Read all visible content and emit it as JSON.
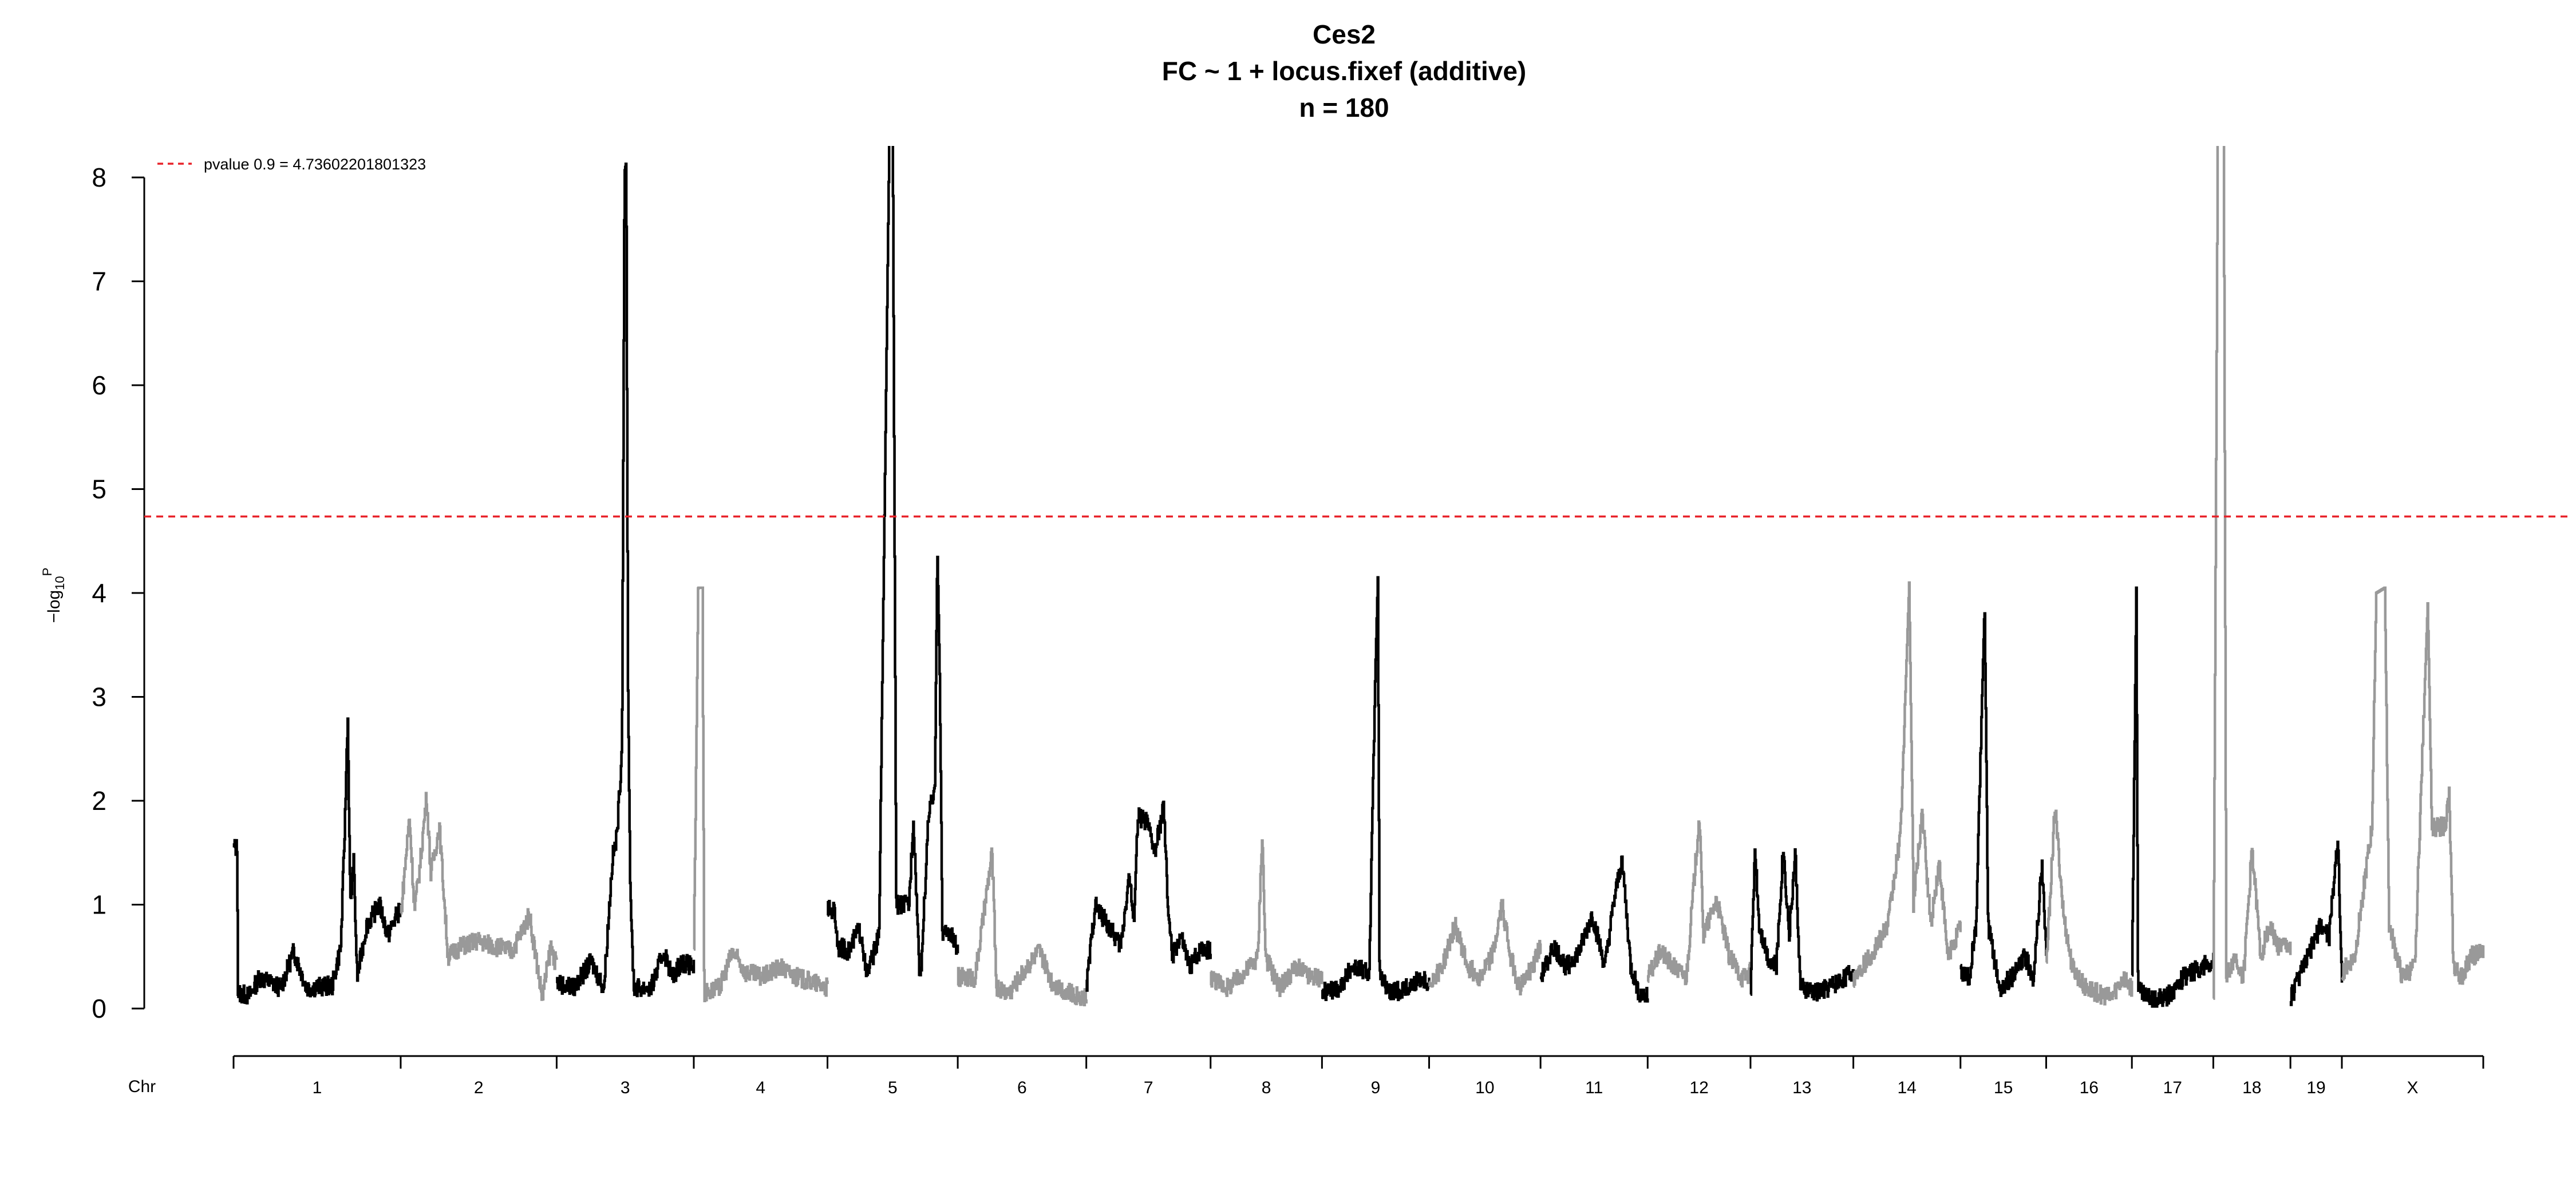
{
  "chart_data": {
    "type": "line",
    "title_lines": [
      "Ces2",
      "FC ~ 1 + locus.fixef (additive)",
      "n = 180"
    ],
    "ylabel": "−log",
    "ylabel_sub": "10",
    "ylabel_sup": "P",
    "chr_label": "Chr",
    "ylim": [
      0,
      8.3
    ],
    "yticks": [
      "0",
      "1",
      "2",
      "3",
      "4",
      "5",
      "6",
      "7",
      "8"
    ],
    "threshold": {
      "value": 4.73602201801323,
      "label": "pvalue 0.9 = 4.73602201801323",
      "color": "#e8232a"
    },
    "colors": {
      "odd": "#000000",
      "even": "#999999"
    },
    "chromosomes": [
      {
        "label": "1",
        "start": 0.0,
        "end": 195.0,
        "profile": [
          [
            0,
            1.55
          ],
          [
            4,
            1.55
          ],
          [
            5,
            0.15
          ],
          [
            18,
            0.12
          ],
          [
            30,
            0.3
          ],
          [
            55,
            0.2
          ],
          [
            70,
            0.55
          ],
          [
            85,
            0.2
          ],
          [
            115,
            0.22
          ],
          [
            125,
            0.6
          ],
          [
            130,
            1.85
          ],
          [
            133,
            2.85
          ],
          [
            136,
            1.0
          ],
          [
            140,
            1.4
          ],
          [
            144,
            0.3
          ],
          [
            155,
            0.8
          ],
          [
            170,
            1.0
          ],
          [
            180,
            0.7
          ],
          [
            190,
            0.9
          ],
          [
            195,
            0.95
          ]
        ]
      },
      {
        "label": "2",
        "start": 195.0,
        "end": 377.0,
        "profile": [
          [
            0,
            0.9
          ],
          [
            10,
            1.85
          ],
          [
            16,
            0.95
          ],
          [
            22,
            1.35
          ],
          [
            30,
            2.05
          ],
          [
            35,
            1.3
          ],
          [
            45,
            1.75
          ],
          [
            55,
            0.5
          ],
          [
            70,
            0.6
          ],
          [
            90,
            0.65
          ],
          [
            110,
            0.6
          ],
          [
            130,
            0.55
          ],
          [
            150,
            0.9
          ],
          [
            165,
            0.1
          ],
          [
            175,
            0.6
          ],
          [
            182,
            0.4
          ]
        ]
      },
      {
        "label": "3",
        "start": 377.0,
        "end": 537.0,
        "profile": [
          [
            0,
            0.25
          ],
          [
            20,
            0.2
          ],
          [
            40,
            0.45
          ],
          [
            55,
            0.2
          ],
          [
            65,
            1.45
          ],
          [
            70,
            1.65
          ],
          [
            76,
            2.5
          ],
          [
            79,
            8.05
          ],
          [
            81,
            8.15
          ],
          [
            83,
            3.15
          ],
          [
            86,
            1.0
          ],
          [
            90,
            0.2
          ],
          [
            110,
            0.2
          ],
          [
            125,
            0.55
          ],
          [
            135,
            0.3
          ],
          [
            145,
            0.45
          ],
          [
            160,
            0.4
          ]
        ]
      },
      {
        "label": "4",
        "start": 537.0,
        "end": 693.0,
        "profile": [
          [
            0,
            0.6
          ],
          [
            5,
            4.05
          ],
          [
            10,
            4.05
          ],
          [
            12,
            0.15
          ],
          [
            30,
            0.2
          ],
          [
            45,
            0.55
          ],
          [
            60,
            0.35
          ],
          [
            80,
            0.3
          ],
          [
            100,
            0.4
          ],
          [
            120,
            0.3
          ],
          [
            140,
            0.25
          ],
          [
            156,
            0.2
          ]
        ]
      },
      {
        "label": "5",
        "start": 693.0,
        "end": 845.0,
        "profile": [
          [
            0,
            0.95
          ],
          [
            8,
            0.95
          ],
          [
            12,
            0.6
          ],
          [
            25,
            0.55
          ],
          [
            35,
            0.75
          ],
          [
            40,
            0.7
          ],
          [
            45,
            0.3
          ],
          [
            60,
            0.7
          ],
          [
            72,
            8.4
          ],
          [
            76,
            8.4
          ],
          [
            80,
            1.0
          ],
          [
            95,
            1.0
          ],
          [
            100,
            1.85
          ],
          [
            108,
            0.2
          ],
          [
            118,
            1.9
          ],
          [
            125,
            2.05
          ],
          [
            128,
            4.45
          ],
          [
            131,
            3.1
          ],
          [
            134,
            0.7
          ],
          [
            142,
            0.75
          ],
          [
            152,
            0.55
          ]
        ]
      },
      {
        "label": "6",
        "start": 845.0,
        "end": 995.0,
        "profile": [
          [
            0,
            0.3
          ],
          [
            20,
            0.3
          ],
          [
            40,
            1.5
          ],
          [
            45,
            0.2
          ],
          [
            60,
            0.15
          ],
          [
            80,
            0.4
          ],
          [
            95,
            0.55
          ],
          [
            110,
            0.25
          ],
          [
            130,
            0.15
          ],
          [
            150,
            0.1
          ]
        ]
      },
      {
        "label": "7",
        "start": 995.0,
        "end": 1140.0,
        "profile": [
          [
            0,
            0.2
          ],
          [
            10,
            1.0
          ],
          [
            25,
            0.8
          ],
          [
            40,
            0.6
          ],
          [
            50,
            1.3
          ],
          [
            55,
            0.8
          ],
          [
            60,
            1.85
          ],
          [
            70,
            1.8
          ],
          [
            80,
            1.5
          ],
          [
            90,
            1.95
          ],
          [
            95,
            1.0
          ],
          [
            100,
            0.5
          ],
          [
            110,
            0.7
          ],
          [
            120,
            0.4
          ],
          [
            135,
            0.6
          ],
          [
            145,
            0.55
          ]
        ]
      },
      {
        "label": "8",
        "start": 1140.0,
        "end": 1270.0,
        "profile": [
          [
            0,
            0.3
          ],
          [
            20,
            0.2
          ],
          [
            40,
            0.35
          ],
          [
            55,
            0.5
          ],
          [
            60,
            1.7
          ],
          [
            64,
            0.5
          ],
          [
            80,
            0.2
          ],
          [
            100,
            0.4
          ],
          [
            115,
            0.3
          ],
          [
            130,
            0.3
          ]
        ]
      },
      {
        "label": "9",
        "start": 1270.0,
        "end": 1395.0,
        "profile": [
          [
            0,
            0.15
          ],
          [
            20,
            0.2
          ],
          [
            35,
            0.4
          ],
          [
            55,
            0.35
          ],
          [
            62,
            3.2
          ],
          [
            65,
            4.15
          ],
          [
            67,
            0.3
          ],
          [
            80,
            0.15
          ],
          [
            100,
            0.2
          ],
          [
            115,
            0.3
          ],
          [
            125,
            0.25
          ]
        ]
      },
      {
        "label": "10",
        "start": 1395.0,
        "end": 1525.0,
        "profile": [
          [
            0,
            0.25
          ],
          [
            15,
            0.4
          ],
          [
            30,
            0.8
          ],
          [
            45,
            0.4
          ],
          [
            60,
            0.3
          ],
          [
            75,
            0.55
          ],
          [
            85,
            1.0
          ],
          [
            95,
            0.5
          ],
          [
            105,
            0.2
          ],
          [
            120,
            0.4
          ],
          [
            130,
            0.6
          ]
        ]
      },
      {
        "label": "11",
        "start": 1525.0,
        "end": 1650.0,
        "profile": [
          [
            0,
            0.3
          ],
          [
            15,
            0.6
          ],
          [
            30,
            0.4
          ],
          [
            45,
            0.55
          ],
          [
            60,
            0.9
          ],
          [
            75,
            0.4
          ],
          [
            85,
            1.0
          ],
          [
            95,
            1.45
          ],
          [
            105,
            0.4
          ],
          [
            115,
            0.15
          ],
          [
            125,
            0.1
          ]
        ]
      },
      {
        "label": "12",
        "start": 1650.0,
        "end": 1770.0,
        "profile": [
          [
            0,
            0.3
          ],
          [
            15,
            0.55
          ],
          [
            30,
            0.4
          ],
          [
            45,
            0.3
          ],
          [
            60,
            1.85
          ],
          [
            65,
            0.7
          ],
          [
            80,
            1.05
          ],
          [
            95,
            0.5
          ],
          [
            110,
            0.3
          ],
          [
            120,
            0.35
          ]
        ]
      },
      {
        "label": "13",
        "start": 1770.0,
        "end": 1890.0,
        "profile": [
          [
            0,
            0.2
          ],
          [
            5,
            1.55
          ],
          [
            10,
            0.8
          ],
          [
            20,
            0.5
          ],
          [
            30,
            0.4
          ],
          [
            38,
            1.55
          ],
          [
            45,
            0.7
          ],
          [
            52,
            1.5
          ],
          [
            58,
            0.2
          ],
          [
            75,
            0.15
          ],
          [
            90,
            0.2
          ],
          [
            110,
            0.3
          ],
          [
            120,
            0.35
          ]
        ]
      },
      {
        "label": "14",
        "start": 1890.0,
        "end": 2015.0,
        "profile": [
          [
            0,
            0.3
          ],
          [
            20,
            0.5
          ],
          [
            40,
            0.8
          ],
          [
            55,
            1.7
          ],
          [
            65,
            4.1
          ],
          [
            70,
            1.0
          ],
          [
            80,
            1.9
          ],
          [
            90,
            0.8
          ],
          [
            100,
            1.4
          ],
          [
            110,
            0.5
          ],
          [
            125,
            0.8
          ]
        ]
      },
      {
        "label": "15",
        "start": 2015.0,
        "end": 2115.0,
        "profile": [
          [
            0,
            0.35
          ],
          [
            10,
            0.3
          ],
          [
            18,
            0.8
          ],
          [
            28,
            3.9
          ],
          [
            32,
            0.8
          ],
          [
            45,
            0.2
          ],
          [
            60,
            0.3
          ],
          [
            75,
            0.5
          ],
          [
            85,
            0.3
          ],
          [
            95,
            1.4
          ],
          [
            100,
            0.5
          ]
        ]
      },
      {
        "label": "16",
        "start": 2115.0,
        "end": 2215.0,
        "profile": [
          [
            0,
            0.4
          ],
          [
            10,
            1.95
          ],
          [
            20,
            0.9
          ],
          [
            30,
            0.4
          ],
          [
            45,
            0.2
          ],
          [
            60,
            0.15
          ],
          [
            75,
            0.1
          ],
          [
            90,
            0.3
          ],
          [
            100,
            0.2
          ]
        ]
      },
      {
        "label": "17",
        "start": 2215.0,
        "end": 2310.0,
        "profile": [
          [
            0,
            0.3
          ],
          [
            5,
            4.05
          ],
          [
            7,
            0.2
          ],
          [
            20,
            0.1
          ],
          [
            40,
            0.1
          ],
          [
            60,
            0.3
          ],
          [
            80,
            0.4
          ],
          [
            95,
            0.45
          ]
        ]
      },
      {
        "label": "18",
        "start": 2310.0,
        "end": 2400.0,
        "profile": [
          [
            0,
            0.1
          ],
          [
            5,
            8.4
          ],
          [
            12,
            8.4
          ],
          [
            15,
            0.3
          ],
          [
            25,
            0.5
          ],
          [
            35,
            0.3
          ],
          [
            45,
            1.55
          ],
          [
            55,
            0.5
          ],
          [
            65,
            0.8
          ],
          [
            75,
            0.6
          ],
          [
            90,
            0.6
          ]
        ]
      },
      {
        "label": "19",
        "start": 2400.0,
        "end": 2460.0,
        "profile": [
          [
            0,
            0.1
          ],
          [
            10,
            0.3
          ],
          [
            20,
            0.5
          ],
          [
            35,
            0.8
          ],
          [
            45,
            0.7
          ],
          [
            55,
            1.65
          ],
          [
            60,
            0.25
          ]
        ]
      },
      {
        "label": "X",
        "start": 2460.0,
        "end": 2625.0,
        "profile": [
          [
            0,
            0.35
          ],
          [
            15,
            0.5
          ],
          [
            25,
            1.15
          ],
          [
            35,
            1.75
          ],
          [
            40,
            4.0
          ],
          [
            50,
            4.05
          ],
          [
            55,
            0.8
          ],
          [
            70,
            0.3
          ],
          [
            85,
            0.4
          ],
          [
            100,
            3.9
          ],
          [
            105,
            1.75
          ],
          [
            120,
            1.75
          ],
          [
            125,
            2.05
          ],
          [
            130,
            0.4
          ],
          [
            140,
            0.3
          ],
          [
            150,
            0.5
          ],
          [
            165,
            0.55
          ]
        ]
      }
    ]
  }
}
